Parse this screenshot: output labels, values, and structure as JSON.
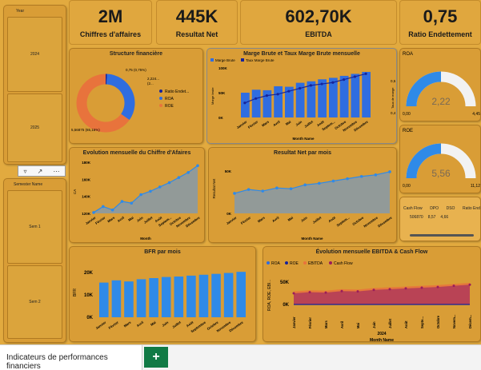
{
  "kpis": [
    {
      "value": "2M",
      "label": "Chiffres d'affaires"
    },
    {
      "value": "445K",
      "label": "Resultat Net"
    },
    {
      "value": "602,70K",
      "label": "EBITDA"
    },
    {
      "value": "0,75",
      "label": "Ratio Endettement"
    }
  ],
  "year_slicer": {
    "title": "Year",
    "options": [
      "2024",
      "2025"
    ]
  },
  "semester_slicer": {
    "title": "Semester Name",
    "options": [
      "Sem 1",
      "Sem 2"
    ]
  },
  "visual_toolbar": {
    "filter_icon": "filter-icon",
    "focus_icon": "focus-icon",
    "more_icon": "more-options-icon"
  },
  "donut": {
    "title": "Structure financière",
    "label_top": "0,75 (0,75%)",
    "label_right": "2,224...",
    "label_right2": "(2...",
    "label_bottom": "5,56875 (65,15%)",
    "legend": [
      {
        "name": "Ratio Endet...",
        "color": "#16239a"
      },
      {
        "name": "ROA",
        "color": "#2f6de0"
      },
      {
        "name": "ROE",
        "color": "#e8733c"
      }
    ],
    "slices": [
      0.75,
      34.1,
      65.15
    ]
  },
  "marge": {
    "title": "Marge Brute et Taux Marge Brute mensuelle",
    "legend": [
      "Marge Brute",
      "Taux Marge Brute"
    ],
    "y_left": [
      "100K",
      "50K",
      "0K"
    ],
    "y_right": [
      "0,5",
      "0,4"
    ],
    "ylabel": "Marge brute",
    "ylabel_right": "Taux de marge",
    "xlabel": "Month Name",
    "months": [
      "Janvier",
      "Février",
      "Mars",
      "Avril",
      "Mai",
      "Juin",
      "Juillet",
      "Août",
      "Septem...",
      "Octobre",
      "Novembre",
      "Décembre"
    ],
    "bars": [
      50,
      56,
      55,
      63,
      62,
      70,
      73,
      77,
      80,
      84,
      88,
      92
    ],
    "line": [
      0.4,
      0.415,
      0.425,
      0.43,
      0.44,
      0.45,
      0.46,
      0.465,
      0.47,
      0.48,
      0.49,
      0.5
    ]
  },
  "roa_gauge": {
    "title": "ROA",
    "value": "2,22",
    "min": "0,00",
    "max": "4,45",
    "fraction": 0.5
  },
  "roe_gauge": {
    "title": "ROE",
    "value": "5,56",
    "min": "0,00",
    "max": "11,12",
    "fraction": 0.5
  },
  "ca": {
    "title": "Evolution mensuelle du Chiffre d'Afaires",
    "y": [
      "180K",
      "160K",
      "140K",
      "120K"
    ],
    "ylabel": "CA",
    "xlabel": "Month",
    "months": [
      "Janvier",
      "Février",
      "Mars",
      "Avril",
      "Mai",
      "Juin",
      "Juillet",
      "Août",
      "Septem...",
      "Octobre",
      "Novembre",
      "Décembre"
    ],
    "values": [
      121,
      128,
      124,
      134,
      132,
      142,
      146,
      151,
      156,
      162,
      168,
      176
    ]
  },
  "rn": {
    "title": "Resultat Net par mois",
    "y": [
      "50K",
      "0K"
    ],
    "ylabel": "Resultat Net",
    "xlabel": "Month Name",
    "months": [
      "Janvier",
      "Février",
      "Mars",
      "Avril",
      "Mai",
      "Juin",
      "Juillet",
      "Août",
      "Septem...",
      "Octobre",
      "Novembre",
      "Décembre"
    ],
    "values": [
      26,
      31,
      29,
      33,
      32,
      37,
      39,
      42,
      45,
      48,
      50,
      54
    ]
  },
  "table": {
    "headers": [
      "Cash Flow",
      "DPO",
      "DSO",
      "Ratio End"
    ],
    "row": [
      "506870",
      "8,57",
      "4,66",
      ""
    ]
  },
  "bfr": {
    "title": "BFR par mois",
    "y": [
      "20K",
      "10K",
      "0K"
    ],
    "ylabel": "BFR",
    "xlabel": "",
    "months": [
      "Janvier",
      "Février",
      "Mars",
      "Avril",
      "Mai",
      "Juin",
      "Juillet",
      "Août",
      "Septembre",
      "Octobre",
      "Novembre",
      "Décembre"
    ],
    "values": [
      15.5,
      16.5,
      16,
      17,
      17.5,
      18,
      18.2,
      18.6,
      19,
      19.4,
      19.8,
      20.3
    ]
  },
  "ebitda": {
    "title": "Évolution mensuelle EBITDA & Cash Flow",
    "legend": [
      {
        "name": "ROA",
        "color": "#2f6de0"
      },
      {
        "name": "ROE",
        "color": "#16239a"
      },
      {
        "name": "EBITDA",
        "color": "#e8733c"
      },
      {
        "name": "Cash Flow",
        "color": "#9b1d5a"
      }
    ],
    "y": [
      "50K",
      "0K"
    ],
    "ylabel": "ROA, ROE, EBI...",
    "xlabel": "Month Name",
    "year": "2024",
    "months": [
      "Janvier",
      "Février",
      "Mars",
      "Avril",
      "Mai",
      "Juin",
      "Juillet",
      "Août",
      "Septe...",
      "Octobre",
      "Novem...",
      "Décem..."
    ],
    "ebitda": [
      35,
      38,
      37,
      41,
      40,
      44,
      46,
      48,
      50,
      52,
      55,
      58
    ],
    "cash": [
      30,
      33,
      32,
      36,
      35,
      39,
      41,
      43,
      45,
      47,
      50,
      53
    ]
  },
  "footer": {
    "tab_label": "Indicateurs de performances financiers",
    "add_label": "+"
  }
}
